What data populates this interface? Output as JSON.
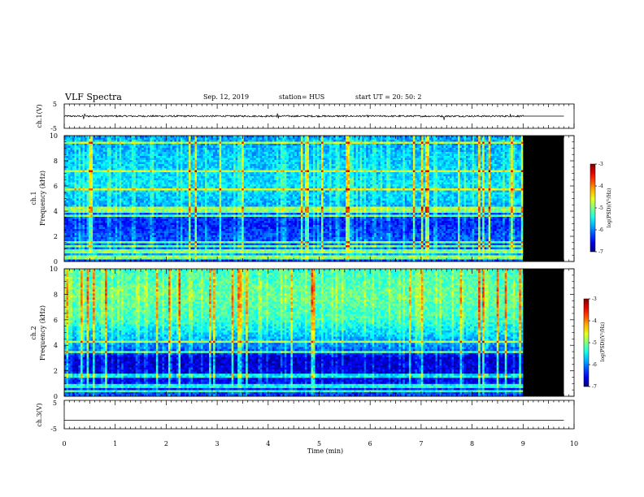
{
  "header": {
    "title": "VLF Spectra",
    "date": "Sep. 12, 2019",
    "station": "station= HUS",
    "start": "start  UT =   20: 50: 2"
  },
  "chart_data": [
    {
      "type": "line",
      "name": "ch1-waveform",
      "ylabel": "ch.1(V)",
      "ylim": [
        -5,
        5
      ],
      "y_tick_labels": [
        "5",
        "-5"
      ],
      "xlim": [
        0,
        10
      ],
      "signal_end_min": 9,
      "baseline_v": 0,
      "noise_amplitude_v": 0.35,
      "spikes": [
        {
          "x": 0.38,
          "y": -1.2
        },
        {
          "x": 0.4,
          "y": 1.0
        },
        {
          "x": 4.18,
          "y": 1.1
        },
        {
          "x": 4.2,
          "y": -0.9
        },
        {
          "x": 7.45,
          "y": -1.6
        },
        {
          "x": 8.75,
          "y": 0.9
        }
      ]
    },
    {
      "type": "heatmap",
      "name": "ch1-spectrogram",
      "ylabel": "Frequency (kHz)",
      "channel_label": "ch.1",
      "xlim": [
        0,
        10
      ],
      "ylim": [
        0,
        10
      ],
      "y_tick_labels": [
        "0",
        "2",
        "4",
        "6",
        "8",
        "10"
      ],
      "data_end_min": 9,
      "no_data_color": "#000000",
      "base_level_by_freq_khz": [
        {
          "f": 0.0,
          "v": -6.3
        },
        {
          "f": 0.5,
          "v": -5.8
        },
        {
          "f": 1.0,
          "v": -6.1
        },
        {
          "f": 2.0,
          "v": -6.2
        },
        {
          "f": 3.0,
          "v": -6.4
        },
        {
          "f": 3.4,
          "v": -6.3
        },
        {
          "f": 4.5,
          "v": -5.8
        },
        {
          "f": 6.0,
          "v": -5.6
        },
        {
          "f": 8.0,
          "v": -5.7
        },
        {
          "f": 10.0,
          "v": -5.9
        }
      ],
      "persistent_lines_khz": [
        0.25,
        0.45,
        0.8,
        1.2,
        1.5,
        3.6,
        4.0,
        4.2,
        5.7,
        7.2,
        9.4
      ],
      "colorbar": {
        "label": "log(PSD)(V²/Hz)",
        "range": [
          -7,
          -3
        ],
        "ticks": [
          "-3",
          "-4",
          "-5",
          "-6",
          "-7"
        ]
      }
    },
    {
      "type": "heatmap",
      "name": "ch2-spectrogram",
      "ylabel": "Frequency (kHz)",
      "channel_label": "ch.2",
      "xlim": [
        0,
        10
      ],
      "ylim": [
        0,
        10
      ],
      "y_tick_labels": [
        "0",
        "2",
        "4",
        "6",
        "8",
        "10"
      ],
      "data_end_min": 9,
      "no_data_color": "#000000",
      "base_level_by_freq_khz": [
        {
          "f": 0.0,
          "v": -6.2
        },
        {
          "f": 0.5,
          "v": -6.4
        },
        {
          "f": 1.5,
          "v": -6.6
        },
        {
          "f": 3.0,
          "v": -6.7
        },
        {
          "f": 3.5,
          "v": -6.2
        },
        {
          "f": 4.5,
          "v": -5.8
        },
        {
          "f": 6.0,
          "v": -5.3
        },
        {
          "f": 8.0,
          "v": -5.1
        },
        {
          "f": 10.0,
          "v": -5.3
        }
      ],
      "persistent_lines_khz": [
        0.4,
        0.8,
        1.6,
        3.5,
        4.3
      ],
      "colorbar": {
        "label": "log(PSD)(V²/Hz)",
        "range": [
          -7,
          -3
        ],
        "ticks": [
          "-3",
          "-4",
          "-5",
          "-6",
          "-7"
        ]
      }
    },
    {
      "type": "line",
      "name": "ch3-waveform",
      "ylabel": "ch.3(V)",
      "ylim": [
        -5,
        5
      ],
      "y_tick_labels": [
        "5",
        "-5"
      ],
      "xlim": [
        0,
        10
      ],
      "baseline_v": -2.0,
      "noise_amplitude_v": 0,
      "xlabel": "Time (min)",
      "x_tick_labels": [
        "0",
        "1",
        "2",
        "3",
        "4",
        "5",
        "6",
        "7",
        "8",
        "9",
        "10"
      ]
    }
  ]
}
